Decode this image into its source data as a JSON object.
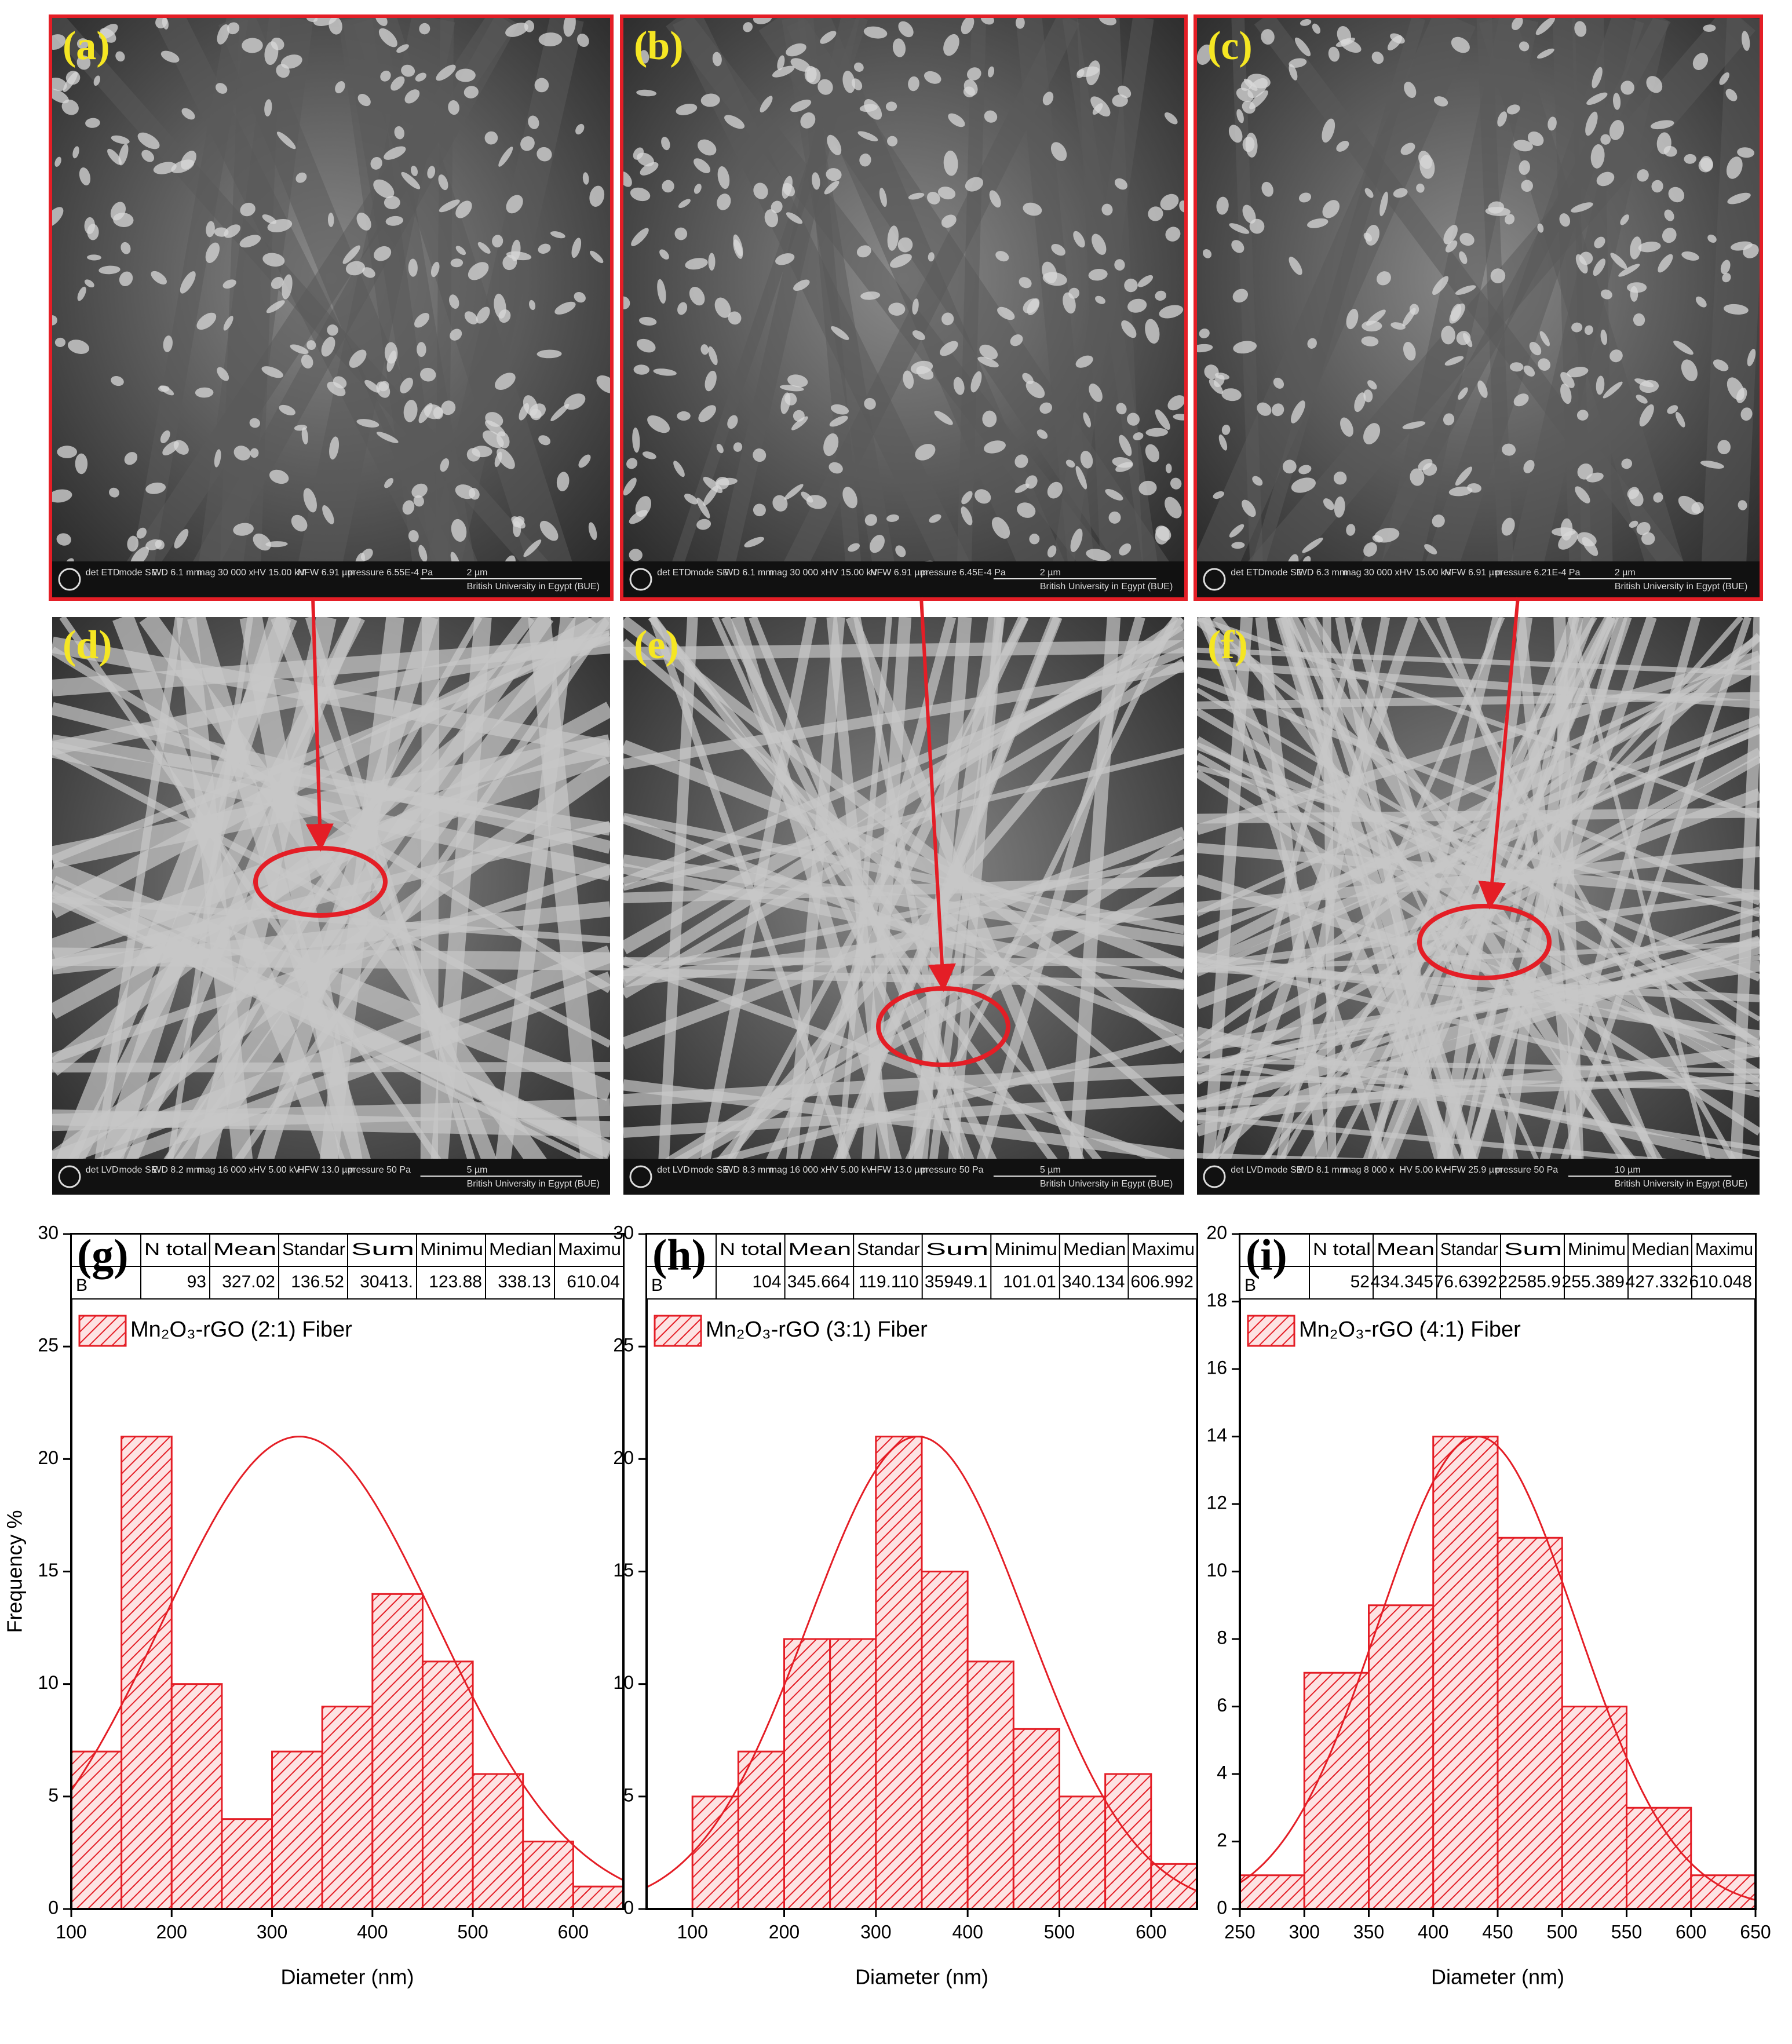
{
  "sem_panels": [
    {
      "label": "(a)",
      "info": [
        "det ETD",
        "mode SE",
        "WD 6.1 mm",
        "mag 30 000 x",
        "HV 15.00 kV",
        "HFW 6.91 µm",
        "pressure 6.55E-4 Pa",
        "2 µm",
        "British University in Egypt (BUE)"
      ]
    },
    {
      "label": "(b)",
      "info": [
        "det ETD",
        "mode SE",
        "WD 6.1 mm",
        "mag 30 000 x",
        "HV 15.00 kV",
        "HFW 6.91 µm",
        "pressure 6.45E-4 Pa",
        "2 µm",
        "British University in Egypt (BUE)"
      ]
    },
    {
      "label": "(c)",
      "info": [
        "det ETD",
        "mode SE",
        "WD 6.3 mm",
        "mag 30 000 x",
        "HV 15.00 kV",
        "HFW 6.91 µm",
        "pressure 6.21E-4 Pa",
        "2 µm",
        "British University in Egypt (BUE)"
      ]
    },
    {
      "label": "(d)",
      "info": [
        "det LVD",
        "mode SE",
        "WD 8.2 mm",
        "mag 16 000 x",
        "HV 5.00 kV",
        "HFW 13.0 µm",
        "pressure 50 Pa",
        "5 µm",
        "British University in Egypt (BUE)"
      ]
    },
    {
      "label": "(e)",
      "info": [
        "det LVD",
        "mode SE",
        "WD 8.3 mm",
        "mag 16 000 x",
        "HV 5.00 kV",
        "HFW 13.0 µm",
        "pressure 50 Pa",
        "5 µm",
        "British University in Egypt (BUE)"
      ]
    },
    {
      "label": "(f)",
      "info": [
        "det LVD",
        "mode SE",
        "WD 8.1 mm",
        "mag 8 000 x",
        "HV 5.00 kV",
        "HFW 25.9 µm",
        "pressure 50 Pa",
        "10 µm",
        "British University in Egypt (BUE)"
      ]
    }
  ],
  "chart_data": [
    {
      "type": "histogram",
      "panel_label": "(g)",
      "x_label": "Diameter (nm)",
      "y_label": "Frequency %",
      "bins": [
        100,
        150,
        200,
        250,
        300,
        350,
        400,
        450,
        500,
        550,
        600,
        650
      ],
      "series": [
        {
          "name": "Mn₂O₃-rGO (2:1) Fiber",
          "color": "#e41e26",
          "values": [
            7,
            21,
            10,
            4,
            7,
            9,
            14,
            11,
            6,
            3,
            1
          ]
        }
      ],
      "fit_peak": 21,
      "xlim": [
        100,
        650
      ],
      "xticks": [
        100,
        200,
        300,
        400,
        500,
        600
      ],
      "ylim": [
        0,
        30
      ],
      "yticks": [
        0,
        5,
        10,
        15,
        20,
        25,
        30
      ],
      "table": {
        "columns": [
          "N total",
          "Mean",
          "Standar",
          "Sum",
          "Minimu",
          "Median",
          "Maximu"
        ],
        "rows": [
          {
            "label": "B",
            "cells": [
              "93",
              "327.02",
              "136.52",
              "30413.",
              "123.88",
              "338.13",
              "610.04"
            ]
          }
        ]
      }
    },
    {
      "type": "histogram",
      "panel_label": "(h)",
      "x_label": "Diameter (nm)",
      "bins": [
        100,
        150,
        200,
        250,
        300,
        350,
        400,
        450,
        500,
        550,
        600,
        650
      ],
      "series": [
        {
          "name": "Mn₂O₃-rGO (3:1) Fiber",
          "color": "#e41e26",
          "values": [
            5,
            7,
            12,
            12,
            21,
            15,
            11,
            8,
            5,
            6,
            2
          ]
        }
      ],
      "fit_peak": 21,
      "xlim": [
        50,
        650
      ],
      "xticks": [
        100,
        200,
        300,
        400,
        500,
        600
      ],
      "ylim": [
        0,
        30
      ],
      "yticks": [
        0,
        5,
        10,
        15,
        20,
        25,
        30
      ],
      "table": {
        "columns": [
          "N total",
          "Mean",
          "Standar",
          "Sum",
          "Minimu",
          "Median",
          "Maximu"
        ],
        "rows": [
          {
            "label": "B",
            "cells": [
              "104",
              "345.664",
              "119.110",
              "35949.1",
              "101.01",
              "340.134",
              "606.992"
            ]
          }
        ]
      }
    },
    {
      "type": "histogram",
      "panel_label": "(i)",
      "x_label": "Diameter (nm)",
      "bins": [
        250,
        300,
        350,
        400,
        450,
        500,
        550,
        600,
        650
      ],
      "series": [
        {
          "name": "Mn₂O₃-rGO (4:1) Fiber",
          "color": "#e41e26",
          "values": [
            1,
            7,
            9,
            14,
            11,
            6,
            3,
            1
          ]
        }
      ],
      "fit_peak": 14,
      "xlim": [
        250,
        650
      ],
      "xticks": [
        250,
        300,
        350,
        400,
        450,
        500,
        550,
        600,
        650
      ],
      "ylim": [
        0,
        20
      ],
      "yticks": [
        0,
        2,
        4,
        6,
        8,
        10,
        12,
        14,
        16,
        18,
        20
      ],
      "table": {
        "columns": [
          "N total",
          "Mean",
          "Standar",
          "Sum",
          "Minimu",
          "Median",
          "Maximu"
        ],
        "rows": [
          {
            "label": "B",
            "cells": [
              "52",
              "434.345",
              "76.6392",
              "22585.9",
              "255.389",
              "427.332",
              "610.048"
            ]
          }
        ]
      }
    }
  ]
}
